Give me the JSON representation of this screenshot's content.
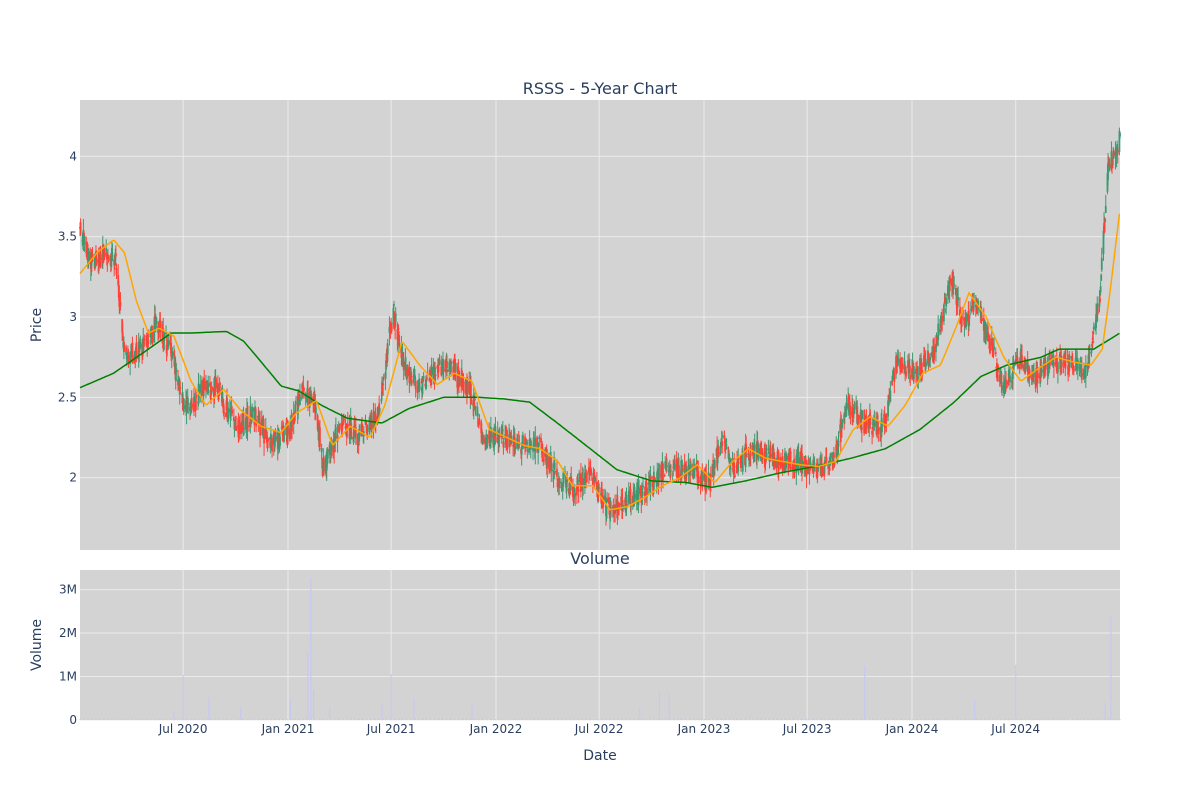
{
  "title": "RSSS - 5-Year Chart",
  "colors": {
    "plot_bg": "#d3d3d3",
    "grid": "#ebebeb",
    "up": "#3d9970",
    "down": "#ff4136",
    "ma_short": "#ffa500",
    "ma_long": "#008000",
    "volume": "#c8c8f0",
    "text": "#2a3f5f"
  },
  "price_panel": {
    "ylabel": "Price",
    "ylim": [
      1.55,
      4.35
    ],
    "yticks": [
      2,
      2.5,
      3,
      3.5,
      4
    ],
    "ytick_labels": [
      "2",
      "2.5",
      "3",
      "3.5",
      "4"
    ]
  },
  "volume_panel": {
    "title": "Volume",
    "ylabel": "Volume",
    "ylim": [
      0,
      3450000
    ],
    "yticks": [
      0,
      1000000,
      2000000,
      3000000
    ],
    "ytick_labels": [
      "0",
      "1M",
      "2M",
      "3M"
    ]
  },
  "x_axis": {
    "xlabel": "Date",
    "range": [
      "2020-01-02",
      "2024-12-31"
    ],
    "ticks": [
      "2020-07-01",
      "2021-01-01",
      "2021-07-01",
      "2022-01-01",
      "2022-07-01",
      "2023-01-01",
      "2023-07-01",
      "2024-01-01",
      "2024-07-01"
    ],
    "tick_labels": [
      "Jul 2020",
      "Jan 2021",
      "Jul 2021",
      "Jan 2022",
      "Jul 2022",
      "Jan 2023",
      "Jul 2023",
      "Jan 2024",
      "Jul 2024"
    ]
  },
  "chart_data": {
    "type": "candlestick",
    "price_anchors": [
      [
        "2020-01-02",
        3.55
      ],
      [
        "2020-01-20",
        3.32
      ],
      [
        "2020-02-15",
        3.4
      ],
      [
        "2020-03-05",
        3.35
      ],
      [
        "2020-03-20",
        2.75
      ],
      [
        "2020-04-20",
        2.8
      ],
      [
        "2020-05-15",
        2.95
      ],
      [
        "2020-06-10",
        2.8
      ],
      [
        "2020-07-05",
        2.4
      ],
      [
        "2020-08-01",
        2.55
      ],
      [
        "2020-09-01",
        2.55
      ],
      [
        "2020-10-01",
        2.3
      ],
      [
        "2020-11-01",
        2.4
      ],
      [
        "2020-12-01",
        2.22
      ],
      [
        "2021-01-05",
        2.3
      ],
      [
        "2021-01-25",
        2.55
      ],
      [
        "2021-02-20",
        2.4
      ],
      [
        "2021-03-05",
        2.05
      ],
      [
        "2021-04-05",
        2.35
      ],
      [
        "2021-05-05",
        2.25
      ],
      [
        "2021-06-10",
        2.4
      ],
      [
        "2021-07-05",
        3.05
      ],
      [
        "2021-07-25",
        2.7
      ],
      [
        "2021-08-20",
        2.55
      ],
      [
        "2021-10-05",
        2.72
      ],
      [
        "2021-11-15",
        2.55
      ],
      [
        "2021-12-10",
        2.25
      ],
      [
        "2022-01-20",
        2.25
      ],
      [
        "2022-02-20",
        2.2
      ],
      [
        "2022-03-20",
        2.2
      ],
      [
        "2022-04-20",
        2.0
      ],
      [
        "2022-05-20",
        1.92
      ],
      [
        "2022-06-15",
        2.05
      ],
      [
        "2022-07-15",
        1.8
      ],
      [
        "2022-08-20",
        1.85
      ],
      [
        "2022-09-20",
        1.92
      ],
      [
        "2022-10-20",
        2.05
      ],
      [
        "2022-11-20",
        2.05
      ],
      [
        "2022-12-20",
        2.05
      ],
      [
        "2023-01-10",
        1.95
      ],
      [
        "2023-02-01",
        2.25
      ],
      [
        "2023-02-20",
        2.05
      ],
      [
        "2023-03-20",
        2.15
      ],
      [
        "2023-04-20",
        2.15
      ],
      [
        "2023-05-20",
        2.1
      ],
      [
        "2023-06-20",
        2.1
      ],
      [
        "2023-07-20",
        2.05
      ],
      [
        "2023-08-15",
        2.1
      ],
      [
        "2023-09-10",
        2.45
      ],
      [
        "2023-10-10",
        2.35
      ],
      [
        "2023-11-10",
        2.3
      ],
      [
        "2023-12-05",
        2.72
      ],
      [
        "2024-01-10",
        2.65
      ],
      [
        "2024-02-10",
        2.8
      ],
      [
        "2024-03-10",
        3.25
      ],
      [
        "2024-04-01",
        2.95
      ],
      [
        "2024-04-20",
        3.1
      ],
      [
        "2024-05-20",
        2.8
      ],
      [
        "2024-06-10",
        2.55
      ],
      [
        "2024-07-10",
        2.75
      ],
      [
        "2024-08-05",
        2.62
      ],
      [
        "2024-09-01",
        2.72
      ],
      [
        "2024-10-01",
        2.72
      ],
      [
        "2024-11-01",
        2.65
      ],
      [
        "2024-11-25",
        3.1
      ],
      [
        "2024-12-10",
        3.9
      ],
      [
        "2024-12-31",
        4.12
      ]
    ],
    "ma_short_anchors": [
      [
        "2020-01-02",
        3.27
      ],
      [
        "2020-02-01",
        3.4
      ],
      [
        "2020-03-01",
        3.48
      ],
      [
        "2020-03-20",
        3.4
      ],
      [
        "2020-04-10",
        3.1
      ],
      [
        "2020-05-01",
        2.9
      ],
      [
        "2020-05-20",
        2.93
      ],
      [
        "2020-06-15",
        2.88
      ],
      [
        "2020-07-15",
        2.6
      ],
      [
        "2020-08-10",
        2.45
      ],
      [
        "2020-09-10",
        2.55
      ],
      [
        "2020-10-10",
        2.42
      ],
      [
        "2020-11-15",
        2.32
      ],
      [
        "2020-12-20",
        2.28
      ],
      [
        "2021-01-15",
        2.4
      ],
      [
        "2021-02-20",
        2.48
      ],
      [
        "2021-03-20",
        2.2
      ],
      [
        "2021-04-20",
        2.32
      ],
      [
        "2021-05-25",
        2.25
      ],
      [
        "2021-06-20",
        2.45
      ],
      [
        "2021-07-20",
        2.85
      ],
      [
        "2021-08-20",
        2.7
      ],
      [
        "2021-09-20",
        2.58
      ],
      [
        "2021-10-20",
        2.65
      ],
      [
        "2021-11-20",
        2.6
      ],
      [
        "2021-12-20",
        2.3
      ],
      [
        "2022-01-20",
        2.25
      ],
      [
        "2022-02-20",
        2.2
      ],
      [
        "2022-03-20",
        2.18
      ],
      [
        "2022-04-20",
        2.1
      ],
      [
        "2022-05-15",
        1.95
      ],
      [
        "2022-06-20",
        1.95
      ],
      [
        "2022-07-20",
        1.8
      ],
      [
        "2022-08-20",
        1.82
      ],
      [
        "2022-09-20",
        1.88
      ],
      [
        "2022-10-20",
        1.95
      ],
      [
        "2022-11-20",
        2.0
      ],
      [
        "2022-12-20",
        2.08
      ],
      [
        "2023-01-20",
        1.97
      ],
      [
        "2023-02-20",
        2.1
      ],
      [
        "2023-03-20",
        2.18
      ],
      [
        "2023-04-20",
        2.12
      ],
      [
        "2023-05-20",
        2.1
      ],
      [
        "2023-06-20",
        2.08
      ],
      [
        "2023-07-20",
        2.07
      ],
      [
        "2023-08-20",
        2.1
      ],
      [
        "2023-09-20",
        2.3
      ],
      [
        "2023-10-20",
        2.38
      ],
      [
        "2023-11-20",
        2.32
      ],
      [
        "2023-12-20",
        2.45
      ],
      [
        "2024-01-20",
        2.65
      ],
      [
        "2024-02-20",
        2.7
      ],
      [
        "2024-03-20",
        2.95
      ],
      [
        "2024-04-10",
        3.15
      ],
      [
        "2024-05-10",
        3.0
      ],
      [
        "2024-06-10",
        2.75
      ],
      [
        "2024-07-10",
        2.6
      ],
      [
        "2024-08-10",
        2.68
      ],
      [
        "2024-09-10",
        2.75
      ],
      [
        "2024-10-10",
        2.72
      ],
      [
        "2024-11-10",
        2.7
      ],
      [
        "2024-11-30",
        2.8
      ],
      [
        "2024-12-15",
        3.2
      ],
      [
        "2024-12-31",
        3.67
      ]
    ],
    "ma_long_anchors": [
      [
        "2020-01-02",
        2.56
      ],
      [
        "2020-03-01",
        2.65
      ],
      [
        "2020-05-01",
        2.8
      ],
      [
        "2020-06-10",
        2.9
      ],
      [
        "2020-07-15",
        2.9
      ],
      [
        "2020-09-15",
        2.91
      ],
      [
        "2020-10-15",
        2.85
      ],
      [
        "2020-11-15",
        2.72
      ],
      [
        "2020-12-20",
        2.57
      ],
      [
        "2021-01-20",
        2.54
      ],
      [
        "2021-03-01",
        2.45
      ],
      [
        "2021-04-15",
        2.37
      ],
      [
        "2021-06-15",
        2.34
      ],
      [
        "2021-08-01",
        2.43
      ],
      [
        "2021-10-01",
        2.5
      ],
      [
        "2021-12-01",
        2.5
      ],
      [
        "2022-01-15",
        2.49
      ],
      [
        "2022-03-01",
        2.47
      ],
      [
        "2022-04-15",
        2.35
      ],
      [
        "2022-06-01",
        2.22
      ],
      [
        "2022-08-01",
        2.05
      ],
      [
        "2022-10-01",
        1.98
      ],
      [
        "2022-12-01",
        1.97
      ],
      [
        "2023-01-15",
        1.94
      ],
      [
        "2023-03-15",
        1.98
      ],
      [
        "2023-05-15",
        2.03
      ],
      [
        "2023-07-15",
        2.07
      ],
      [
        "2023-09-15",
        2.12
      ],
      [
        "2023-11-15",
        2.18
      ],
      [
        "2024-01-15",
        2.3
      ],
      [
        "2024-03-15",
        2.47
      ],
      [
        "2024-05-01",
        2.63
      ],
      [
        "2024-06-15",
        2.7
      ],
      [
        "2024-08-15",
        2.75
      ],
      [
        "2024-09-15",
        2.8
      ],
      [
        "2024-11-15",
        2.8
      ],
      [
        "2024-12-31",
        2.9
      ]
    ],
    "volume_spikes": [
      [
        "2020-07-01",
        1030000
      ],
      [
        "2020-06-15",
        180000
      ],
      [
        "2020-08-15",
        520000
      ],
      [
        "2020-10-10",
        300000
      ],
      [
        "2021-01-05",
        450000
      ],
      [
        "2021-02-10",
        3270000
      ],
      [
        "2021-02-05",
        1600000
      ],
      [
        "2021-02-15",
        700000
      ],
      [
        "2021-03-15",
        300000
      ],
      [
        "2021-06-15",
        350000
      ],
      [
        "2021-07-01",
        1050000
      ],
      [
        "2021-08-10",
        500000
      ],
      [
        "2021-11-20",
        350000
      ],
      [
        "2022-09-10",
        300000
      ],
      [
        "2022-10-15",
        650000
      ],
      [
        "2022-11-01",
        600000
      ],
      [
        "2023-10-10",
        1250000
      ],
      [
        "2024-04-20",
        450000
      ],
      [
        "2024-07-01",
        1270000
      ],
      [
        "2024-12-15",
        2400000
      ],
      [
        "2024-12-05",
        400000
      ]
    ]
  }
}
